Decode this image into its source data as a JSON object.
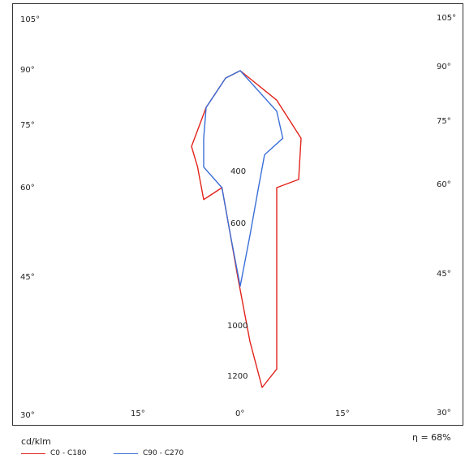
{
  "chart_data": {
    "type": "line",
    "title": "",
    "xlabel": "",
    "ylabel": "",
    "unit_label": "cd/klm",
    "efficiency_label": "η = 68%",
    "left_labels": [
      "105°",
      "90°",
      "75°",
      "60°",
      "45°",
      "30°"
    ],
    "right_labels": [
      "105°",
      "90°",
      "75°",
      "60°",
      "45°",
      "30°"
    ],
    "bottom_labels": [
      "15°",
      "0°",
      "15°"
    ],
    "intensity_labels": [
      "400",
      "600",
      "1000",
      "1200"
    ],
    "series": [
      {
        "name": "C0 - C180",
        "color": "#e2231a",
        "points": [
          [
            0,
            90
          ],
          [
            30,
            82
          ],
          [
            50,
            72
          ],
          [
            48,
            62
          ],
          [
            30,
            60
          ],
          [
            30,
            50
          ],
          [
            30,
            35
          ],
          [
            18,
            33
          ],
          [
            8,
            38
          ],
          [
            -2,
            45
          ],
          [
            -8,
            52
          ],
          [
            -15,
            60
          ],
          [
            -30,
            58
          ],
          [
            -35,
            65
          ],
          [
            -40,
            70
          ],
          [
            -28,
            80
          ],
          [
            -12,
            88
          ],
          [
            0,
            90
          ]
        ]
      },
      {
        "name": "C90 - C270",
        "color": "#3a6fd8",
        "points": [
          [
            0,
            90
          ],
          [
            30,
            79
          ],
          [
            35,
            72
          ],
          [
            20,
            68
          ],
          [
            15,
            60
          ],
          [
            8,
            52
          ],
          [
            0,
            44
          ],
          [
            -8,
            52
          ],
          [
            -15,
            60
          ],
          [
            -30,
            65
          ],
          [
            -30,
            72
          ],
          [
            -28,
            80
          ],
          [
            -12,
            88
          ],
          [
            0,
            90
          ]
        ]
      }
    ]
  }
}
